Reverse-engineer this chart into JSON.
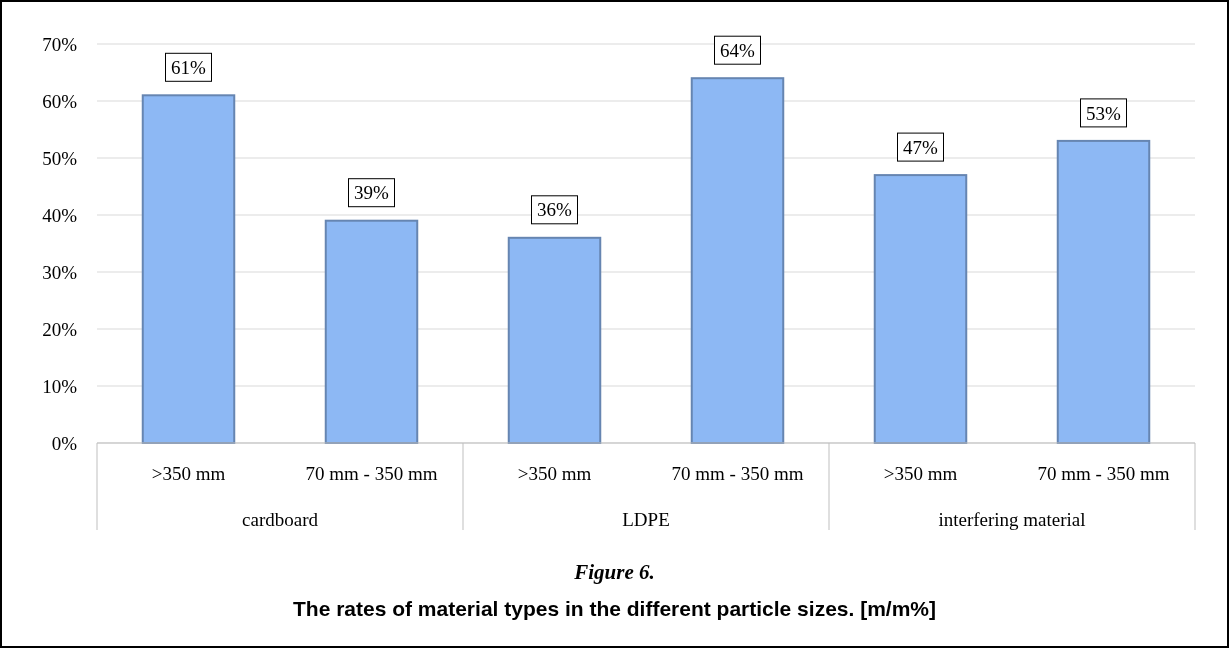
{
  "chart_data": {
    "type": "bar",
    "title": "The rates of material types in the different particle sizes. [m/m%]",
    "subtitle": "Figure 6.",
    "categories": [
      ">350 mm",
      "70 mm - 350 mm",
      ">350 mm",
      "70 mm - 350 mm",
      ">350 mm",
      "70 mm - 350 mm"
    ],
    "annotations": [
      "cardboard",
      "LDPE",
      "interfering material"
    ],
    "values": [
      61,
      39,
      36,
      64,
      47,
      53
    ],
    "value_labels": [
      "61%",
      "39%",
      "36%",
      "64%",
      "47%",
      "53%"
    ],
    "color": "#8db8f4",
    "ylim": [
      0,
      70
    ],
    "yticks": [
      {
        "value": 0,
        "label": "0%"
      },
      {
        "value": 10,
        "label": "10%"
      },
      {
        "value": 20,
        "label": "20%"
      },
      {
        "value": 30,
        "label": "30%"
      },
      {
        "value": 40,
        "label": "40%"
      },
      {
        "value": 50,
        "label": "50%"
      },
      {
        "value": 60,
        "label": "60%"
      },
      {
        "value": 70,
        "label": "70%"
      }
    ],
    "grid": "y"
  }
}
